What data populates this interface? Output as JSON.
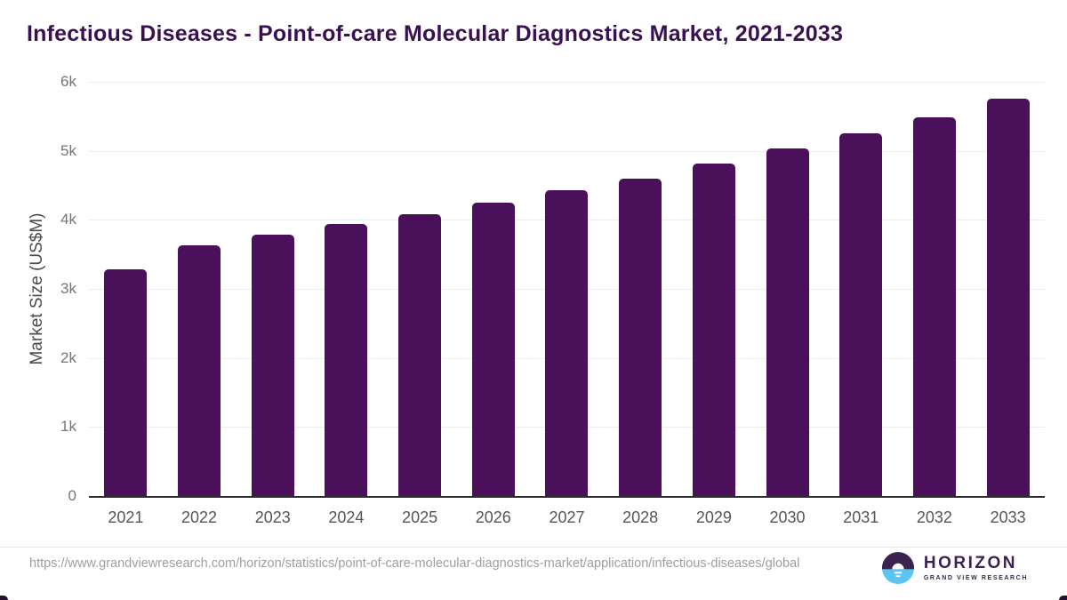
{
  "title": "Infectious Diseases - Point-of-care Molecular Diagnostics Market, 2021-2033",
  "chart_data": {
    "type": "bar",
    "categories": [
      "2021",
      "2022",
      "2023",
      "2024",
      "2025",
      "2026",
      "2027",
      "2028",
      "2029",
      "2030",
      "2031",
      "2032",
      "2033"
    ],
    "values": [
      3280,
      3630,
      3780,
      3940,
      4080,
      4250,
      4430,
      4600,
      4810,
      5030,
      5250,
      5490,
      5750
    ],
    "title": "Infectious Diseases - Point-of-care Molecular Diagnostics Market, 2021-2033",
    "xlabel": "",
    "ylabel": "Market Size (US$M)",
    "ylim": [
      0,
      6000
    ],
    "yticks": [
      0,
      1000,
      2000,
      3000,
      4000,
      5000,
      6000
    ],
    "ytick_labels": [
      "0",
      "1k",
      "2k",
      "3k",
      "4k",
      "5k",
      "6k"
    ],
    "grid": true,
    "legend": "none",
    "bar_color": "#4a115a"
  },
  "colors": {
    "title": "#3a1150",
    "bar": "#4a115a",
    "gridline": "#ececec",
    "axis": "#2c2c2c",
    "tick_text": "#757575",
    "logo_purple": "#3b2350",
    "logo_blue": "#5bc5f2"
  },
  "footer": {
    "source_url": "https://www.grandviewresearch.com/horizon/statistics/point-of-care-molecular-diagnostics-market/application/infectious-diseases/global",
    "logo_brand": "HORIZON",
    "logo_sub": "GRAND VIEW RESEARCH"
  }
}
